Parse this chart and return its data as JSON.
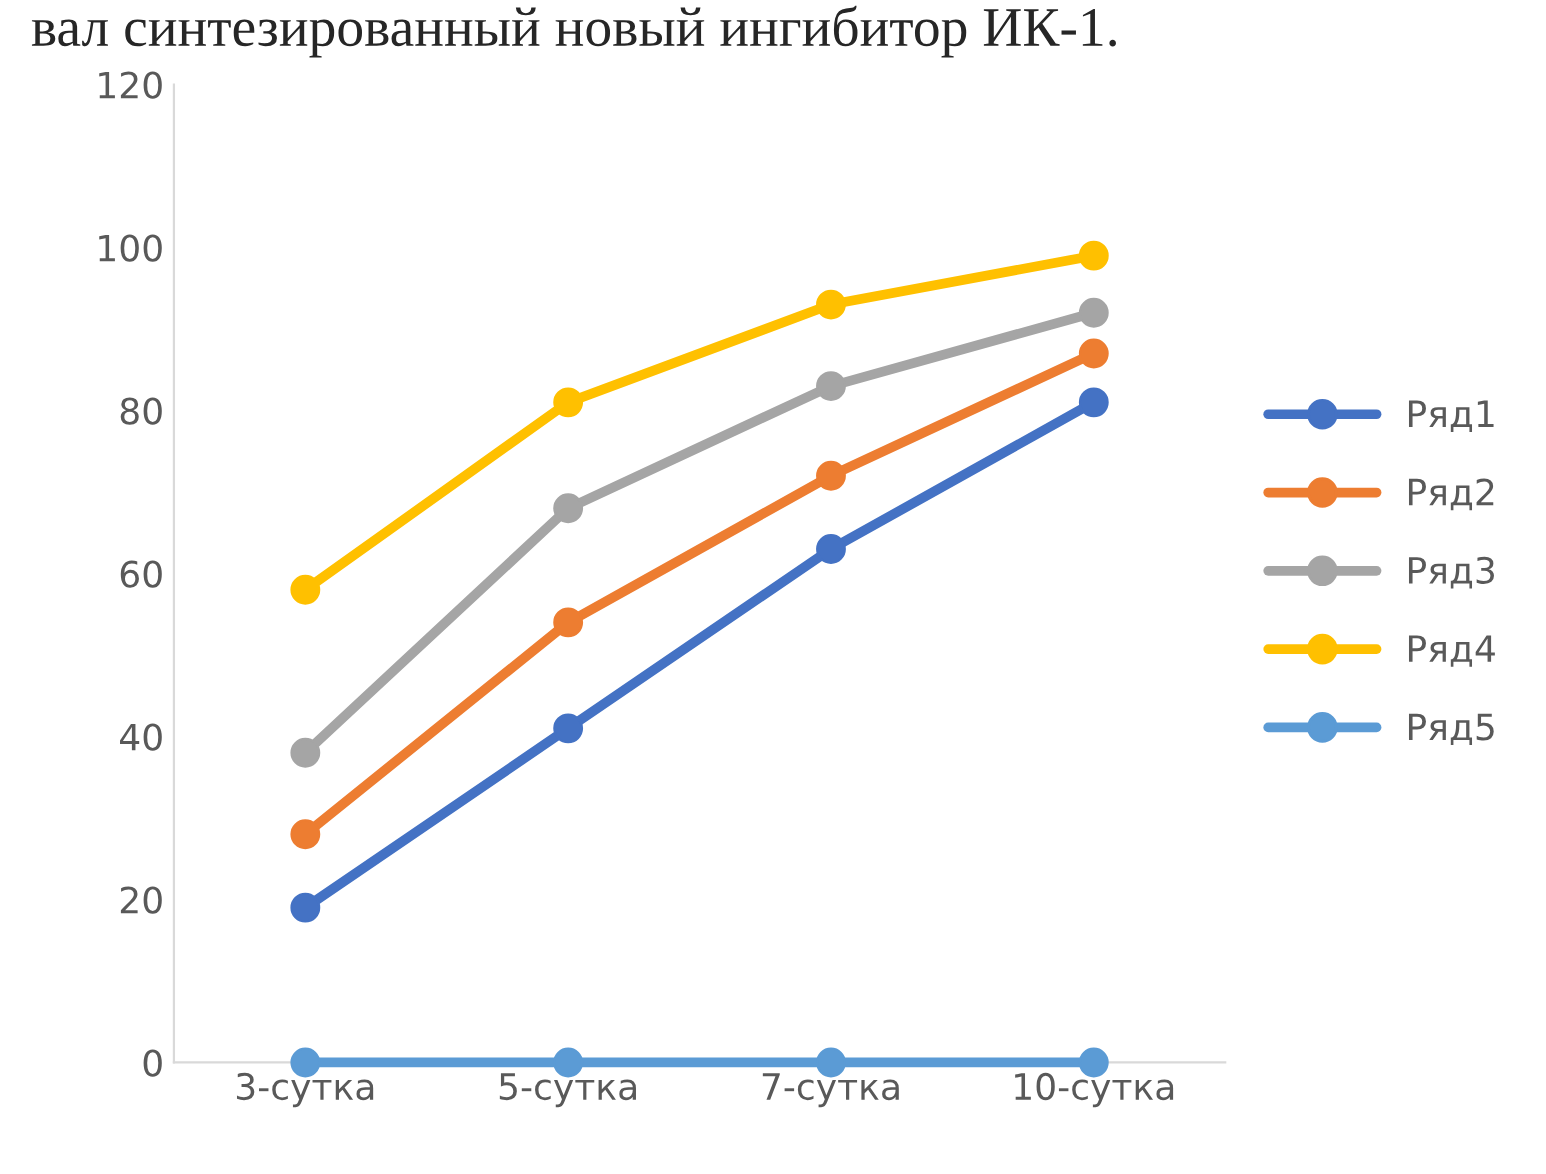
{
  "chart_data": {
    "type": "line",
    "categories": [
      "3-сутка",
      "5-сутка",
      "7-сутка",
      "10-сутка"
    ],
    "series": [
      {
        "name": "Ряд1",
        "color": "#4472c4",
        "values": [
          19,
          41,
          63,
          81
        ]
      },
      {
        "name": "Ряд2",
        "color": "#ed7d31",
        "values": [
          28,
          54,
          72,
          87
        ]
      },
      {
        "name": "Ряд3",
        "color": "#a5a5a5",
        "values": [
          38,
          68,
          83,
          92
        ]
      },
      {
        "name": "Ряд4",
        "color": "#ffc000",
        "values": [
          58,
          81,
          93,
          99
        ]
      },
      {
        "name": "Ряд5",
        "color": "#5b9bd5",
        "values": [
          0,
          0,
          0,
          0
        ]
      }
    ],
    "ylim": [
      0,
      120
    ],
    "yticks": [
      0,
      20,
      40,
      60,
      80,
      100,
      120
    ],
    "grid": false,
    "legend": "right",
    "marker": "circle",
    "line_style": "solid",
    "annotations": [
      "вал синтезированный новый ингибитор ИК-1."
    ]
  }
}
